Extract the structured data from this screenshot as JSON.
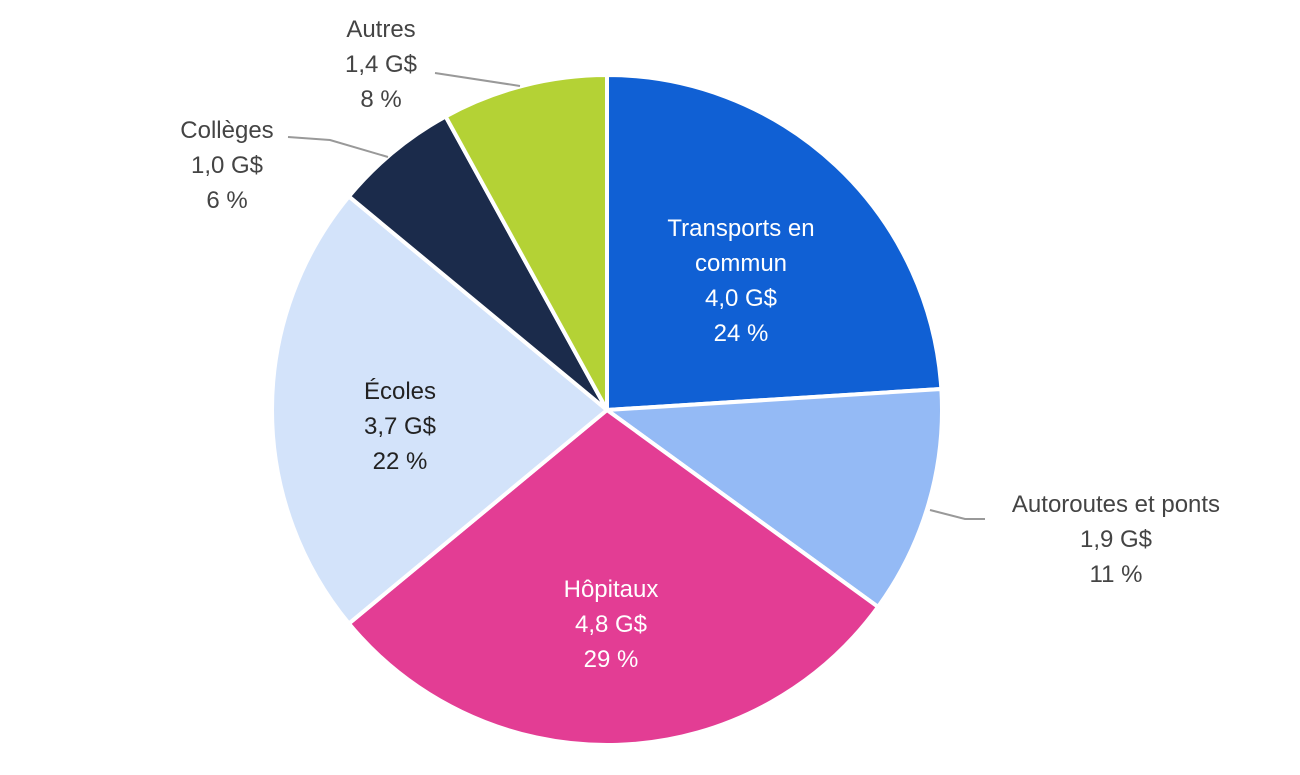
{
  "chart_data": {
    "type": "pie",
    "title": "",
    "unit": "G$",
    "start": "top",
    "direction": "clockwise",
    "slices": [
      {
        "name": "Transports en commun",
        "label_lines": [
          "Transports en",
          "commun"
        ],
        "value": 4.0,
        "value_label": "4,0 G$",
        "percent": 24,
        "percent_label": "24 %",
        "color": "#1060D4",
        "text_color": "#ffffff"
      },
      {
        "name": "Autoroutes et ponts",
        "label_lines": [
          "Autoroutes et ponts"
        ],
        "value": 1.9,
        "value_label": "1,9 G$",
        "percent": 11,
        "percent_label": "11 %",
        "color": "#94BAF5",
        "text_color": "#444444"
      },
      {
        "name": "Hôpitaux",
        "label_lines": [
          "Hôpitaux"
        ],
        "value": 4.8,
        "value_label": "4,8 G$",
        "percent": 29,
        "percent_label": "29 %",
        "color": "#E33D94",
        "text_color": "#ffffff"
      },
      {
        "name": "Écoles",
        "label_lines": [
          "Écoles"
        ],
        "value": 3.7,
        "value_label": "3,7 G$",
        "percent": 22,
        "percent_label": "22 %",
        "color": "#D3E3FA",
        "text_color": "#222222"
      },
      {
        "name": "Collèges",
        "label_lines": [
          "Collèges"
        ],
        "value": 1.0,
        "value_label": "1,0 G$",
        "percent": 6,
        "percent_label": "6 %",
        "color": "#1B2B4B",
        "text_color": "#444444"
      },
      {
        "name": "Autres",
        "label_lines": [
          "Autres"
        ],
        "value": 1.4,
        "value_label": "1,4 G$",
        "percent": 8,
        "percent_label": "8 %",
        "color": "#B4D235",
        "text_color": "#444444"
      }
    ]
  }
}
